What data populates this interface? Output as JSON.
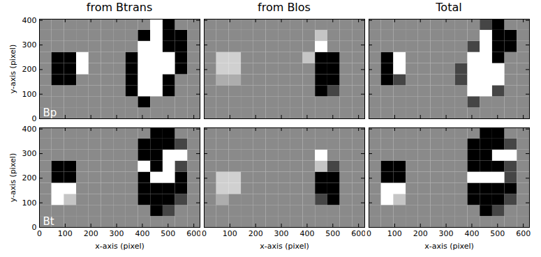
{
  "chart_data": [
    {
      "type": "heatmap",
      "title": "from Btrans",
      "ylabel": "y-axis (pixel)",
      "annotations": [
        "Bp"
      ],
      "tick_labels": "y",
      "xlim": [
        0,
        624
      ],
      "ylim": [
        0,
        405
      ],
      "xticks": [
        0,
        100,
        200,
        300,
        400,
        500,
        600
      ],
      "yticks": [
        0,
        100,
        200,
        300,
        400
      ],
      "clim": [
        -1,
        1
      ],
      "x_edges": [
        0,
        48,
        96,
        144,
        192,
        240,
        288,
        336,
        384,
        432,
        480,
        528,
        576,
        624
      ],
      "y_edges": [
        0,
        45,
        90,
        135,
        180,
        225,
        270,
        315,
        360,
        405
      ],
      "cells": [
        [
          0,
          0,
          0,
          0,
          0,
          0,
          0,
          0,
          0,
          0,
          0,
          0,
          0
        ],
        [
          0,
          0,
          0,
          0,
          0,
          0,
          0,
          0,
          -1,
          0,
          0,
          0,
          0
        ],
        [
          0,
          0,
          0,
          0,
          0,
          0,
          0,
          -1,
          1,
          1,
          -1,
          0,
          0
        ],
        [
          0,
          -1,
          -1,
          0,
          0,
          0,
          0,
          -1,
          1,
          1,
          -1,
          0,
          0
        ],
        [
          0,
          -1,
          -1,
          1,
          0,
          0,
          0,
          -1,
          1,
          1,
          1,
          -1,
          0
        ],
        [
          0,
          -1,
          -1,
          1,
          0,
          0,
          0,
          -1,
          1,
          1,
          1,
          -1,
          0
        ],
        [
          0,
          0,
          0,
          0,
          0,
          0,
          0,
          0,
          1,
          1,
          -1,
          -1,
          0
        ],
        [
          0,
          0,
          0,
          0,
          0,
          0,
          0,
          0,
          -1,
          1,
          -1,
          -1,
          0
        ],
        [
          0,
          0,
          0,
          0,
          0,
          0,
          0,
          0,
          0,
          1,
          -1,
          0,
          0
        ]
      ]
    },
    {
      "type": "heatmap",
      "title": "from Blos",
      "tick_labels": false,
      "xlim": [
        0,
        624
      ],
      "ylim": [
        0,
        405
      ],
      "xticks": [
        0,
        100,
        200,
        300,
        400,
        500,
        600
      ],
      "yticks": [
        0,
        100,
        200,
        300,
        400
      ],
      "clim": [
        -1,
        1
      ],
      "x_edges": [
        0,
        48,
        96,
        144,
        192,
        240,
        288,
        336,
        384,
        432,
        480,
        528,
        576,
        624
      ],
      "y_edges": [
        0,
        45,
        90,
        135,
        180,
        225,
        270,
        315,
        360,
        405
      ],
      "cells": [
        [
          0,
          0,
          0,
          0,
          0,
          0,
          0,
          0,
          0,
          0,
          0,
          0,
          0
        ],
        [
          0,
          0,
          0,
          0,
          0,
          0,
          0,
          0,
          0,
          0,
          0,
          0,
          0
        ],
        [
          0,
          0,
          0,
          0,
          0,
          0,
          0,
          0,
          0,
          -1,
          -0.5,
          0,
          0
        ],
        [
          0,
          0.3,
          0.3,
          0,
          0,
          0,
          0,
          0,
          0,
          -1,
          -1,
          0,
          0
        ],
        [
          0,
          0.6,
          0.6,
          0,
          0,
          0,
          0,
          0,
          0,
          -1,
          -1,
          0,
          0
        ],
        [
          0,
          0.6,
          0.6,
          0,
          0,
          0,
          0,
          0,
          0.5,
          -1,
          -1,
          0,
          0
        ],
        [
          0,
          0,
          0,
          0,
          0,
          0,
          0,
          0,
          0,
          1,
          0,
          0,
          0
        ],
        [
          0,
          0,
          0,
          0,
          0,
          0,
          0,
          0,
          0,
          0.5,
          0,
          0,
          0
        ],
        [
          0,
          0,
          0,
          0,
          0,
          0,
          0,
          0,
          0,
          0,
          0,
          0,
          0
        ]
      ]
    },
    {
      "type": "heatmap",
      "title": "Total",
      "tick_labels": false,
      "xlim": [
        0,
        624
      ],
      "ylim": [
        0,
        405
      ],
      "xticks": [
        0,
        100,
        200,
        300,
        400,
        500,
        600
      ],
      "yticks": [
        0,
        100,
        200,
        300,
        400
      ],
      "clim": [
        -1,
        1
      ],
      "x_edges": [
        0,
        48,
        96,
        144,
        192,
        240,
        288,
        336,
        384,
        432,
        480,
        528,
        576,
        624
      ],
      "y_edges": [
        0,
        45,
        90,
        135,
        180,
        225,
        270,
        315,
        360,
        405
      ],
      "cells": [
        [
          0,
          0,
          0,
          0,
          0,
          0,
          0,
          0,
          0,
          0,
          0,
          0,
          0
        ],
        [
          0,
          0,
          0,
          0,
          0,
          0,
          0,
          0,
          -0.5,
          0,
          0,
          0,
          0
        ],
        [
          0,
          0,
          0,
          0,
          0,
          0,
          0,
          0,
          1,
          1,
          -0.5,
          0,
          0
        ],
        [
          0,
          -1,
          -0.5,
          0,
          0,
          0,
          0,
          -0.5,
          1,
          1,
          1,
          0,
          0
        ],
        [
          0,
          -1,
          1,
          0,
          0,
          0,
          0,
          -0.5,
          1,
          1,
          1,
          0,
          0
        ],
        [
          0,
          -1,
          1,
          0,
          0,
          0,
          0,
          0,
          1,
          1,
          -1,
          0,
          0
        ],
        [
          0,
          0,
          0,
          0,
          0,
          0,
          0,
          0,
          -0.5,
          1,
          -1,
          -1,
          0
        ],
        [
          0,
          0,
          0,
          0,
          0,
          0,
          0,
          0,
          0,
          1,
          -1,
          -1,
          0
        ],
        [
          0,
          0,
          0,
          0,
          0,
          0,
          0,
          0,
          0,
          -0.5,
          -1,
          0,
          0
        ]
      ]
    },
    {
      "type": "heatmap",
      "xlabel": "x-axis (pixel)",
      "ylabel": "y-axis (pixel)",
      "annotations": [
        "Bt"
      ],
      "tick_labels": true,
      "xlim": [
        0,
        624
      ],
      "ylim": [
        0,
        405
      ],
      "xticks": [
        0,
        100,
        200,
        300,
        400,
        500,
        600
      ],
      "yticks": [
        0,
        100,
        200,
        300,
        400
      ],
      "clim": [
        -1,
        1
      ],
      "x_edges": [
        0,
        48,
        96,
        144,
        192,
        240,
        288,
        336,
        384,
        432,
        480,
        528,
        576,
        624
      ],
      "y_edges": [
        0,
        45,
        90,
        135,
        180,
        225,
        270,
        315,
        360,
        405
      ],
      "cells": [
        [
          0,
          0,
          0,
          0,
          0,
          0,
          0,
          0,
          0,
          0,
          0,
          0,
          0
        ],
        [
          0,
          0,
          0,
          0,
          0,
          0,
          0,
          0,
          0,
          -1,
          -0.5,
          0,
          0
        ],
        [
          0,
          1,
          0.5,
          0,
          0,
          0,
          0,
          0,
          -1,
          -1,
          -1,
          -0.5,
          0
        ],
        [
          0,
          1,
          1,
          0,
          0,
          0,
          0,
          0,
          -1,
          -1,
          -1,
          -1,
          0
        ],
        [
          0,
          -1,
          -1,
          0,
          0,
          0,
          0,
          0,
          -1,
          1,
          1,
          -1,
          0
        ],
        [
          0,
          -1,
          -1,
          0,
          0,
          0,
          0,
          0,
          1,
          -1,
          1,
          -0.5,
          0
        ],
        [
          0,
          0,
          0,
          0,
          0,
          0,
          0,
          0,
          -1,
          -1,
          1,
          1,
          0
        ],
        [
          0,
          0,
          0,
          0,
          0,
          0,
          0,
          0,
          -1,
          -1,
          -1,
          -0.5,
          0
        ],
        [
          0,
          0,
          0,
          0,
          0,
          0,
          0,
          0,
          0,
          -1,
          -1,
          0,
          0
        ]
      ]
    },
    {
      "type": "heatmap",
      "xlabel": "x-axis (pixel)",
      "tick_labels": "x",
      "xlim": [
        0,
        624
      ],
      "ylim": [
        0,
        405
      ],
      "xticks": [
        0,
        100,
        200,
        300,
        400,
        500,
        600
      ],
      "yticks": [
        0,
        100,
        200,
        300,
        400
      ],
      "clim": [
        -1,
        1
      ],
      "x_edges": [
        0,
        48,
        96,
        144,
        192,
        240,
        288,
        336,
        384,
        432,
        480,
        528,
        576,
        624
      ],
      "y_edges": [
        0,
        45,
        90,
        135,
        180,
        225,
        270,
        315,
        360,
        405
      ],
      "cells": [
        [
          0,
          0,
          0,
          0,
          0,
          0,
          0,
          0,
          0,
          0,
          0,
          0,
          0
        ],
        [
          0,
          0,
          0,
          0,
          0,
          0,
          0,
          0,
          0,
          0,
          0,
          0,
          0
        ],
        [
          0,
          0.3,
          0,
          0,
          0,
          0,
          0,
          0,
          0,
          -0.5,
          -1,
          0,
          0
        ],
        [
          0,
          0.6,
          0.6,
          0,
          0,
          0,
          0,
          0,
          0,
          -1,
          -1,
          0,
          0
        ],
        [
          0,
          0.6,
          0.6,
          0,
          0,
          0,
          0,
          0,
          0,
          -1,
          -1,
          0,
          0
        ],
        [
          0,
          0,
          0,
          0,
          0,
          0,
          0,
          0,
          0,
          0.5,
          -0.5,
          0,
          0
        ],
        [
          0,
          0,
          0,
          0,
          0,
          0,
          0,
          0,
          0,
          1,
          0,
          0,
          0
        ],
        [
          0,
          0,
          0,
          0,
          0,
          0,
          0,
          0,
          0,
          0,
          0,
          0,
          0
        ],
        [
          0,
          0,
          0,
          0,
          0,
          0,
          0,
          0,
          0,
          0,
          0,
          0,
          0
        ]
      ]
    },
    {
      "type": "heatmap",
      "xlabel": "x-axis (pixel)",
      "tick_labels": "x",
      "xlim": [
        0,
        624
      ],
      "ylim": [
        0,
        405
      ],
      "xticks": [
        0,
        100,
        200,
        300,
        400,
        500,
        600
      ],
      "yticks": [
        0,
        100,
        200,
        300,
        400
      ],
      "clim": [
        -1,
        1
      ],
      "x_edges": [
        0,
        48,
        96,
        144,
        192,
        240,
        288,
        336,
        384,
        432,
        480,
        528,
        576,
        624
      ],
      "y_edges": [
        0,
        45,
        90,
        135,
        180,
        225,
        270,
        315,
        360,
        405
      ],
      "cells": [
        [
          0,
          0,
          0,
          0,
          0,
          0,
          0,
          0,
          0,
          0,
          0,
          0,
          0
        ],
        [
          0,
          0,
          0,
          0,
          0,
          0,
          0,
          0,
          0,
          -1,
          -0.5,
          0,
          0
        ],
        [
          0,
          1,
          0.5,
          0,
          0,
          0,
          0,
          0,
          -1,
          -1,
          -1,
          -0.5,
          0
        ],
        [
          0,
          1,
          1,
          0,
          0,
          0,
          0,
          0,
          -1,
          -1,
          -1,
          -1,
          0
        ],
        [
          0,
          -1,
          -1,
          0,
          0,
          0,
          0,
          0,
          1,
          1,
          1,
          -0.5,
          0
        ],
        [
          0,
          -1,
          -1,
          0,
          0,
          0,
          0,
          0,
          -1,
          -1,
          -1,
          -0.5,
          0
        ],
        [
          0,
          0,
          0,
          0,
          0,
          0,
          0,
          0,
          -1,
          -1,
          1,
          1,
          0
        ],
        [
          0,
          0,
          0,
          0,
          0,
          0,
          0,
          0,
          -1,
          -1,
          -1,
          -0.5,
          0
        ],
        [
          0,
          0,
          0,
          0,
          0,
          0,
          0,
          0,
          0,
          -1,
          -1,
          0,
          0
        ]
      ]
    }
  ]
}
